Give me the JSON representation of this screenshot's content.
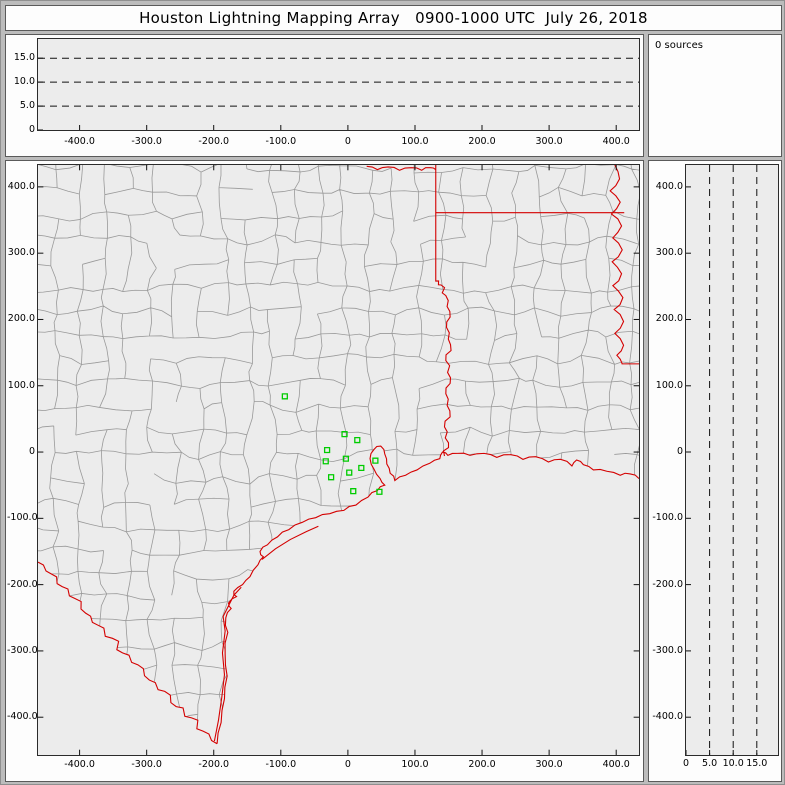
{
  "window": {
    "title": "Houston Lightning Mapping Array   0900-1000 UTC  July 26, 2018"
  },
  "sources_panel": {
    "label": "0 sources"
  },
  "colors": {
    "state_border": "#d40000",
    "county": "#999999",
    "station": "#00cc00",
    "dashed_line": "#111111",
    "plot_background": "#ececec",
    "panel_background": "#fdfdfd",
    "frame_background": "#bcbcbc"
  },
  "chart_data": [
    {
      "id": "altitude-vs-east-west",
      "type": "scatter",
      "title": "",
      "xlim": [
        -462,
        434
      ],
      "ylim": [
        0,
        19
      ],
      "x_ticks": [
        -400,
        -300,
        -200,
        -100,
        0,
        100,
        200,
        300,
        400
      ],
      "x_tick_labels": [
        "-400.0",
        "-300.0",
        "-200.0",
        "-100.0",
        "0",
        "100.0",
        "200.0",
        "300.0",
        "400.0"
      ],
      "y_ticks": [
        15,
        10,
        5,
        0
      ],
      "y_tick_labels": [
        "15.0",
        "10.0",
        "5.0",
        "0"
      ],
      "dashed_altitude_lines_km": [
        5,
        10,
        15
      ],
      "points": []
    },
    {
      "id": "plan-view-map",
      "type": "scatter",
      "title": "",
      "description": "Plan view basemap: county boundaries (gray), state borders and coastline (red), LMA station markers (green squares)",
      "xlim": [
        -462,
        434
      ],
      "ylim": [
        -457,
        433
      ],
      "x_ticks": [
        -400,
        -300,
        -200,
        -100,
        0,
        100,
        200,
        300,
        400
      ],
      "x_tick_labels": [
        "-400.0",
        "-300.0",
        "-200.0",
        "-100.0",
        "0",
        "100.0",
        "200.0",
        "300.0",
        "400.0"
      ],
      "y_ticks": [
        400,
        300,
        200,
        100,
        0,
        -100,
        -200,
        -300,
        -400
      ],
      "y_tick_labels": [
        "400.0",
        "300.0",
        "200.0",
        "100.0",
        "0",
        "-100.0",
        "-200.0",
        "-300.0",
        "-400.0"
      ],
      "station_markers_km": [
        [
          -94,
          84
        ],
        [
          -5,
          27
        ],
        [
          14,
          18
        ],
        [
          -31,
          3
        ],
        [
          -33,
          -14
        ],
        [
          -3,
          -10
        ],
        [
          -25,
          -38
        ],
        [
          2,
          -31
        ],
        [
          20,
          -24
        ],
        [
          41,
          -13
        ],
        [
          8,
          -59
        ],
        [
          47,
          -60
        ]
      ],
      "points": []
    },
    {
      "id": "altitude-vs-north-south",
      "type": "scatter",
      "title": "",
      "xlim": [
        0,
        19.5
      ],
      "ylim": [
        -457,
        433
      ],
      "x_ticks": [
        0,
        5,
        10,
        15
      ],
      "x_tick_labels": [
        "0",
        "5.0",
        "10.0",
        "15.0"
      ],
      "y_ticks": [
        400,
        300,
        200,
        100,
        0,
        -100,
        -200,
        -300,
        -400
      ],
      "y_tick_labels": [
        "400.0",
        "300.0",
        "200.0",
        "100.0",
        "0",
        "-100.0",
        "-200.0",
        "-300.0",
        "-400.0"
      ],
      "dashed_altitude_lines_km": [
        5,
        10,
        15
      ],
      "points": []
    }
  ]
}
